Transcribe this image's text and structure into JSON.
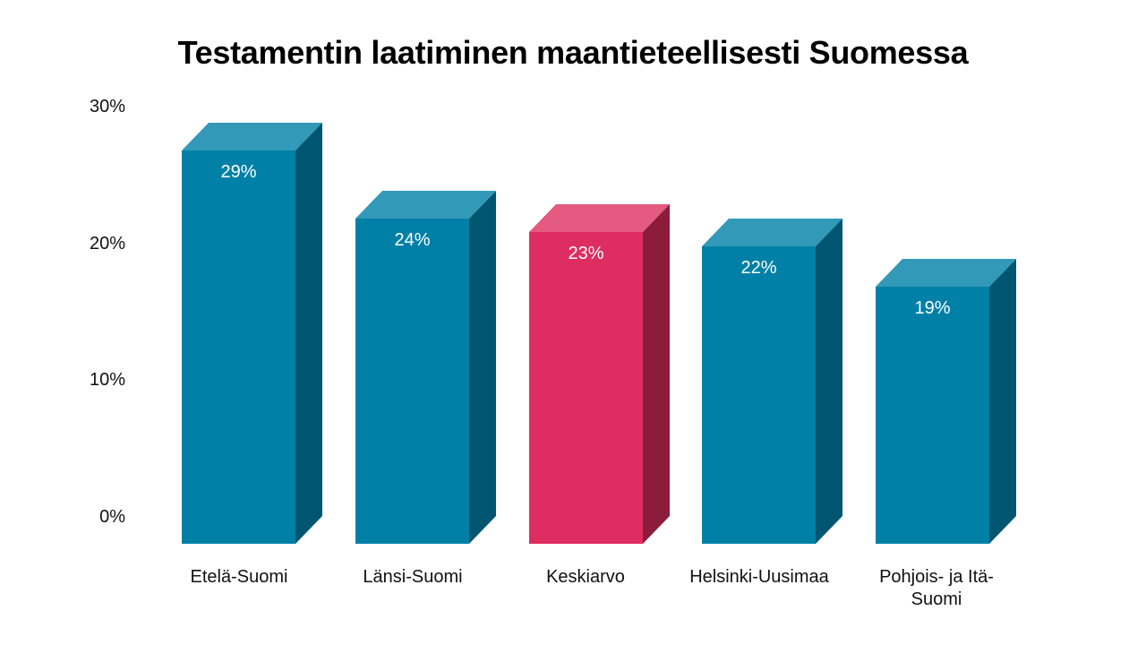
{
  "chart_data": {
    "type": "bar",
    "title": "Testamentin laatiminen maantieteellisesti Suomessa",
    "xlabel": "",
    "ylabel": "",
    "categories": [
      "Etelä-Suomi",
      "Länsi-Suomi",
      "Keskiarvo",
      "Helsinki-Uusimaa",
      "Pohjois- ja Itä-Suomi"
    ],
    "values": [
      29,
      24,
      23,
      22,
      19
    ],
    "value_labels": [
      "29%",
      "24%",
      "23%",
      "22%",
      "19%"
    ],
    "ylim": [
      0,
      30
    ],
    "yticks": [
      "0%",
      "10%",
      "20%",
      "30%"
    ],
    "grid": false,
    "legend": null,
    "style": "3d-column",
    "colors": {
      "default": {
        "front": "#0080a6",
        "top": "#3399b8",
        "side": "#005670"
      },
      "highlight": {
        "front": "#de2d60",
        "top": "#e45a80",
        "side": "#8c1c3c"
      }
    },
    "highlighted_category": "Keskiarvo"
  },
  "title": "Testamentin laatiminen maantieteellisesti Suomessa",
  "yaxis": {
    "ticks": [
      "30%",
      "20%",
      "10%",
      "0%"
    ]
  },
  "bars": [
    {
      "label": "Etelä-Suomi",
      "value_label": "29%"
    },
    {
      "label": "Länsi-Suomi",
      "value_label": "24%"
    },
    {
      "label": "Keskiarvo",
      "value_label": "23%"
    },
    {
      "label": "Helsinki-Uusimaa",
      "value_label": "22%"
    },
    {
      "label": "Pohjois- ja Itä-Suomi",
      "value_label": "19%"
    }
  ]
}
